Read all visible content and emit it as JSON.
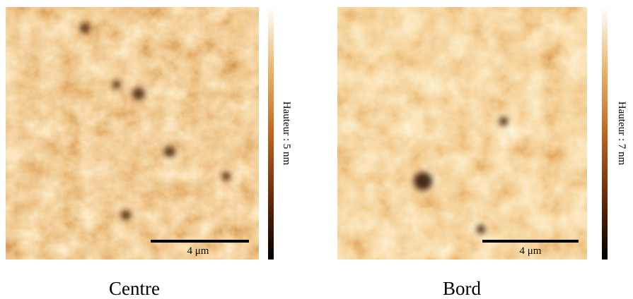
{
  "panels": [
    {
      "scale_bar": "4 μm",
      "colorbar_label": "Hauteur : 5 nm",
      "caption": "Centre"
    },
    {
      "scale_bar": "4 μm",
      "colorbar_label": "Hauteur : 7 nm",
      "caption": "Bord"
    }
  ]
}
